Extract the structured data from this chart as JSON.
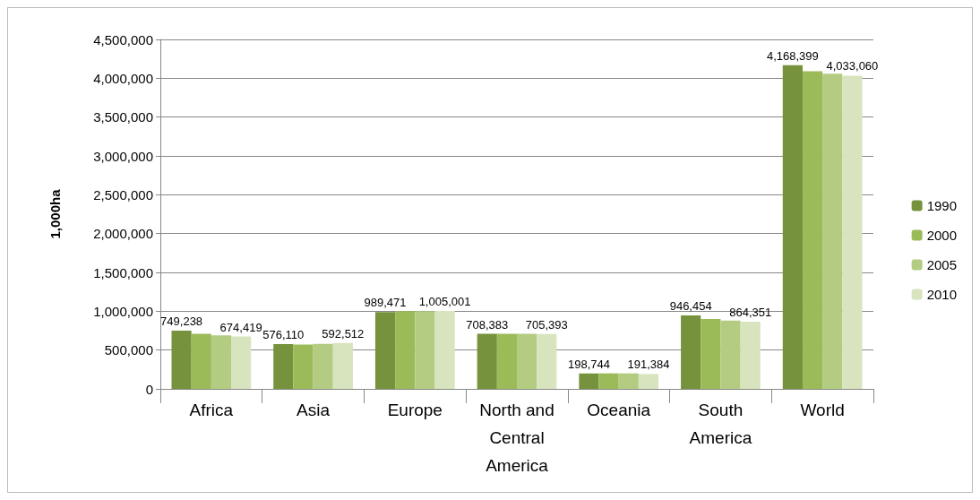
{
  "chart_data": {
    "type": "bar",
    "ylabel": "1,000ha",
    "categories": [
      "Africa",
      "Asia",
      "Europe",
      "North and Central America",
      "Oceania",
      "South America",
      "World"
    ],
    "series": [
      {
        "name": "1990",
        "color": "#76923c",
        "values": [
          749238,
          576110,
          989471,
          708383,
          198744,
          946454,
          4168399
        ],
        "value_labels": [
          "749,238",
          "576,110",
          "989,471",
          "708,383",
          "198,744",
          "946,454",
          "4,168,399"
        ]
      },
      {
        "name": "2000",
        "color": "#9bbb59",
        "values": [
          710000,
          570000,
          1000000,
          710000,
          200000,
          900000,
          4090000
        ]
      },
      {
        "name": "2005",
        "color": "#b3cc82",
        "values": [
          690000,
          580000,
          1000000,
          710000,
          200000,
          880000,
          4060000
        ]
      },
      {
        "name": "2010",
        "color": "#d7e4bd",
        "values": [
          674419,
          592512,
          1005001,
          705393,
          191384,
          864351,
          4033060
        ],
        "value_labels": [
          "674,419",
          "592,512",
          "1,005,001",
          "705,393",
          "191,384",
          "864,351",
          "4,033,060"
        ]
      }
    ],
    "ylim": [
      0,
      4500000
    ],
    "yticks": [
      0,
      {
        "value": 500000,
        "label": "500,000"
      },
      {
        "value": 1000000,
        "label": "1,000,000"
      },
      {
        "value": 1500000,
        "label": "1,500,000"
      },
      {
        "value": 2000000,
        "label": "2,000,000"
      },
      {
        "value": 2500000,
        "label": "2,500,000"
      },
      {
        "value": 3000000,
        "label": "3,000,000"
      },
      {
        "value": 3500000,
        "label": "3,500,000"
      },
      {
        "value": 4000000,
        "label": "4,000,000"
      },
      {
        "value": 4500000,
        "label": "4,500,000"
      }
    ],
    "grid": "y",
    "legend": "right"
  }
}
